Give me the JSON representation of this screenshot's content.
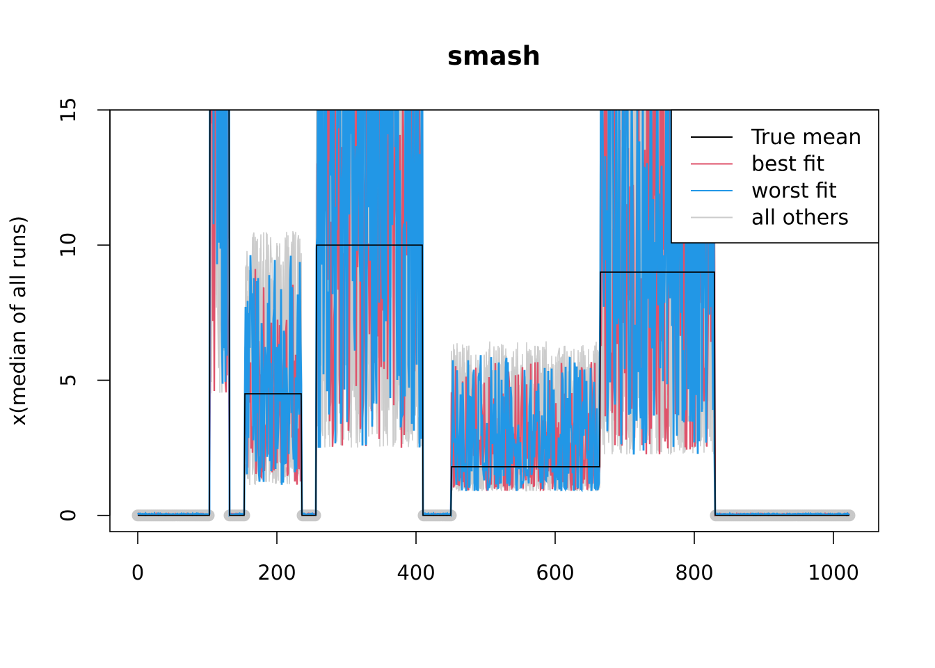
{
  "chart_data": {
    "type": "line",
    "title": "smash",
    "xlabel": "",
    "ylabel": "x(median of all runs)",
    "xlim": [
      -40,
      1065
    ],
    "ylim": [
      -0.6,
      15
    ],
    "x_ticks": [
      0,
      200,
      400,
      600,
      800,
      1000
    ],
    "y_ticks": [
      0,
      5,
      10,
      15
    ],
    "grid": false,
    "legend": {
      "position": "top-right",
      "entries": [
        {
          "name": "True mean",
          "color": "#000000"
        },
        {
          "name": "best fit",
          "color": "#DF536B"
        },
        {
          "name": "worst fit",
          "color": "#2297E6"
        },
        {
          "name": "all others",
          "color": "#CCCCCC"
        }
      ]
    },
    "n_points": 1024,
    "true_mean_segments": [
      {
        "x": [
          0,
          103
        ],
        "y": 0
      },
      {
        "x": [
          104,
          131
        ],
        "y": 18
      },
      {
        "x": [
          132,
          153
        ],
        "y": 0
      },
      {
        "x": [
          154,
          235
        ],
        "y": 4.5
      },
      {
        "x": [
          236,
          256
        ],
        "y": 0
      },
      {
        "x": [
          257,
          409
        ],
        "y": 10
      },
      {
        "x": [
          410,
          450
        ],
        "y": 0
      },
      {
        "x": [
          451,
          664
        ],
        "y": 1.8
      },
      {
        "x": [
          665,
          829
        ],
        "y": 9
      },
      {
        "x": [
          830,
          1023
        ],
        "y": 0
      }
    ],
    "series": [
      {
        "name": "True mean",
        "color": "#000000"
      },
      {
        "name": "best fit",
        "color": "#DF536B"
      },
      {
        "name": "worst fit",
        "color": "#2297E6"
      },
      {
        "name": "all others",
        "color": "#CCCCCC"
      }
    ]
  }
}
